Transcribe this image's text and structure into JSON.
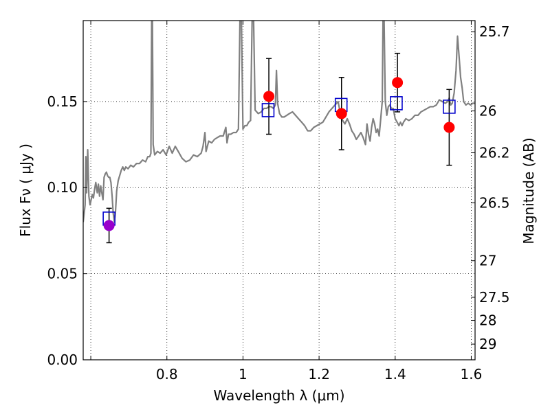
{
  "chart_data": {
    "type": "scatter",
    "xlabel": "Wavelength  λ (μm)",
    "ylabel": "Flux  Fν  ( μJy )",
    "ylabel_right": "Magnitude (AB)",
    "xlim": [
      0.58,
      1.61
    ],
    "ylim": [
      0.0,
      0.197
    ],
    "grid": true,
    "x_ticks": [
      0.6,
      0.8,
      1.0,
      1.2,
      1.4,
      1.6
    ],
    "x_tick_labels": [
      "",
      "0.8",
      "1",
      "1.2",
      "1.4",
      "1.6"
    ],
    "y_ticks": [
      0.0,
      0.05,
      0.1,
      0.15
    ],
    "y_tick_labels": [
      "0.00",
      "0.05",
      "0.10",
      "0.15"
    ],
    "right_ticks": [
      {
        "mag": 25.7,
        "label": "25.7"
      },
      {
        "mag": 26,
        "label": "26"
      },
      {
        "mag": 26.2,
        "label": "26.2"
      },
      {
        "mag": 26.5,
        "label": "26.5"
      },
      {
        "mag": 27,
        "label": "27"
      },
      {
        "mag": 27.5,
        "label": "27.5"
      },
      {
        "mag": 28,
        "label": "28"
      },
      {
        "mag": 29,
        "label": "29"
      }
    ],
    "colors": {
      "spectrum": "#808080",
      "model_squares": "#0000cc",
      "observed_points": "#ff0000",
      "first_point": "#9900cc",
      "errorbars": "#000000"
    },
    "series": [
      {
        "kind": "spectrum",
        "points": [
          [
            0.58,
            0.08
          ],
          [
            0.585,
            0.09
          ],
          [
            0.587,
            0.118
          ],
          [
            0.589,
            0.097
          ],
          [
            0.592,
            0.122
          ],
          [
            0.595,
            0.095
          ],
          [
            0.598,
            0.09
          ],
          [
            0.601,
            0.093
          ],
          [
            0.604,
            0.096
          ],
          [
            0.607,
            0.094
          ],
          [
            0.61,
            0.099
          ],
          [
            0.613,
            0.103
          ],
          [
            0.617,
            0.097
          ],
          [
            0.62,
            0.102
          ],
          [
            0.623,
            0.095
          ],
          [
            0.626,
            0.101
          ],
          [
            0.629,
            0.097
          ],
          [
            0.632,
            0.093
          ],
          [
            0.635,
            0.106
          ],
          [
            0.638,
            0.108
          ],
          [
            0.641,
            0.109
          ],
          [
            0.644,
            0.107
          ],
          [
            0.647,
            0.106
          ],
          [
            0.65,
            0.106
          ],
          [
            0.653,
            0.103
          ],
          [
            0.656,
            0.095
          ],
          [
            0.659,
            0.085
          ],
          [
            0.662,
            0.08
          ],
          [
            0.665,
            0.086
          ],
          [
            0.668,
            0.098
          ],
          [
            0.672,
            0.104
          ],
          [
            0.676,
            0.107
          ],
          [
            0.68,
            0.11
          ],
          [
            0.684,
            0.112
          ],
          [
            0.688,
            0.11
          ],
          [
            0.692,
            0.112
          ],
          [
            0.698,
            0.111
          ],
          [
            0.705,
            0.113
          ],
          [
            0.712,
            0.112
          ],
          [
            0.72,
            0.114
          ],
          [
            0.728,
            0.114
          ],
          [
            0.736,
            0.116
          ],
          [
            0.744,
            0.115
          ],
          [
            0.75,
            0.118
          ],
          [
            0.755,
            0.118
          ],
          [
            0.758,
            0.12
          ],
          [
            0.76,
            0.197
          ],
          [
            0.762,
            0.197
          ],
          [
            0.764,
            0.125
          ],
          [
            0.768,
            0.119
          ],
          [
            0.775,
            0.121
          ],
          [
            0.782,
            0.12
          ],
          [
            0.79,
            0.122
          ],
          [
            0.798,
            0.119
          ],
          [
            0.806,
            0.124
          ],
          [
            0.814,
            0.12
          ],
          [
            0.822,
            0.124
          ],
          [
            0.83,
            0.121
          ],
          [
            0.84,
            0.117
          ],
          [
            0.85,
            0.115
          ],
          [
            0.86,
            0.116
          ],
          [
            0.87,
            0.119
          ],
          [
            0.88,
            0.118
          ],
          [
            0.89,
            0.12
          ],
          [
            0.895,
            0.124
          ],
          [
            0.9,
            0.132
          ],
          [
            0.903,
            0.121
          ],
          [
            0.91,
            0.127
          ],
          [
            0.918,
            0.126
          ],
          [
            0.925,
            0.128
          ],
          [
            0.932,
            0.129
          ],
          [
            0.94,
            0.13
          ],
          [
            0.948,
            0.13
          ],
          [
            0.955,
            0.135
          ],
          [
            0.958,
            0.126
          ],
          [
            0.962,
            0.131
          ],
          [
            0.968,
            0.131
          ],
          [
            0.975,
            0.132
          ],
          [
            0.982,
            0.132
          ],
          [
            0.988,
            0.134
          ],
          [
            0.992,
            0.197
          ],
          [
            0.996,
            0.197
          ],
          [
            1.0,
            0.134
          ],
          [
            1.005,
            0.136
          ],
          [
            1.01,
            0.136
          ],
          [
            1.015,
            0.138
          ],
          [
            1.02,
            0.139
          ],
          [
            1.024,
            0.197
          ],
          [
            1.028,
            0.197
          ],
          [
            1.032,
            0.145
          ],
          [
            1.04,
            0.143
          ],
          [
            1.048,
            0.144
          ],
          [
            1.055,
            0.146
          ],
          [
            1.062,
            0.146
          ],
          [
            1.068,
            0.147
          ],
          [
            1.074,
            0.147
          ],
          [
            1.08,
            0.146
          ],
          [
            1.085,
            0.148
          ],
          [
            1.088,
            0.168
          ],
          [
            1.091,
            0.149
          ],
          [
            1.096,
            0.143
          ],
          [
            1.102,
            0.141
          ],
          [
            1.108,
            0.141
          ],
          [
            1.115,
            0.142
          ],
          [
            1.122,
            0.143
          ],
          [
            1.13,
            0.144
          ],
          [
            1.138,
            0.142
          ],
          [
            1.146,
            0.14
          ],
          [
            1.154,
            0.138
          ],
          [
            1.162,
            0.136
          ],
          [
            1.17,
            0.133
          ],
          [
            1.178,
            0.133
          ],
          [
            1.186,
            0.135
          ],
          [
            1.194,
            0.136
          ],
          [
            1.202,
            0.137
          ],
          [
            1.21,
            0.138
          ],
          [
            1.218,
            0.141
          ],
          [
            1.226,
            0.144
          ],
          [
            1.234,
            0.146
          ],
          [
            1.242,
            0.148
          ],
          [
            1.25,
            0.15
          ],
          [
            1.256,
            0.143
          ],
          [
            1.262,
            0.139
          ],
          [
            1.268,
            0.137
          ],
          [
            1.274,
            0.14
          ],
          [
            1.28,
            0.137
          ],
          [
            1.286,
            0.133
          ],
          [
            1.292,
            0.131
          ],
          [
            1.298,
            0.128
          ],
          [
            1.304,
            0.13
          ],
          [
            1.31,
            0.132
          ],
          [
            1.316,
            0.129
          ],
          [
            1.322,
            0.125
          ],
          [
            1.326,
            0.137
          ],
          [
            1.33,
            0.131
          ],
          [
            1.334,
            0.127
          ],
          [
            1.338,
            0.135
          ],
          [
            1.342,
            0.14
          ],
          [
            1.346,
            0.137
          ],
          [
            1.35,
            0.132
          ],
          [
            1.354,
            0.134
          ],
          [
            1.358,
            0.13
          ],
          [
            1.362,
            0.14
          ],
          [
            1.366,
            0.15
          ],
          [
            1.368,
            0.197
          ],
          [
            1.371,
            0.197
          ],
          [
            1.374,
            0.15
          ],
          [
            1.378,
            0.142
          ],
          [
            1.382,
            0.147
          ],
          [
            1.386,
            0.148
          ],
          [
            1.39,
            0.146
          ],
          [
            1.395,
            0.146
          ],
          [
            1.4,
            0.14
          ],
          [
            1.405,
            0.138
          ],
          [
            1.41,
            0.136
          ],
          [
            1.414,
            0.138
          ],
          [
            1.418,
            0.136
          ],
          [
            1.422,
            0.138
          ],
          [
            1.428,
            0.14
          ],
          [
            1.436,
            0.139
          ],
          [
            1.444,
            0.14
          ],
          [
            1.452,
            0.142
          ],
          [
            1.46,
            0.142
          ],
          [
            1.468,
            0.144
          ],
          [
            1.476,
            0.145
          ],
          [
            1.484,
            0.146
          ],
          [
            1.492,
            0.147
          ],
          [
            1.5,
            0.147
          ],
          [
            1.508,
            0.148
          ],
          [
            1.516,
            0.151
          ],
          [
            1.524,
            0.15
          ],
          [
            1.532,
            0.149
          ],
          [
            1.538,
            0.15
          ],
          [
            1.542,
            0.152
          ],
          [
            1.546,
            0.148
          ],
          [
            1.55,
            0.149
          ],
          [
            1.555,
            0.155
          ],
          [
            1.56,
            0.168
          ],
          [
            1.564,
            0.188
          ],
          [
            1.568,
            0.176
          ],
          [
            1.572,
            0.164
          ],
          [
            1.576,
            0.158
          ],
          [
            1.58,
            0.15
          ],
          [
            1.586,
            0.148
          ],
          [
            1.592,
            0.149
          ],
          [
            1.598,
            0.148
          ],
          [
            1.604,
            0.149
          ],
          [
            1.61,
            0.149
          ]
        ]
      },
      {
        "kind": "model_squares",
        "points": [
          [
            0.648,
            0.082
          ],
          [
            1.066,
            0.145
          ],
          [
            1.258,
            0.148
          ],
          [
            1.403,
            0.149
          ],
          [
            1.542,
            0.147
          ]
        ]
      },
      {
        "kind": "observed_points",
        "points": [
          {
            "x": 0.648,
            "y": 0.078,
            "err": 0.01,
            "color": "first_point"
          },
          {
            "x": 1.068,
            "y": 0.153,
            "err": 0.022,
            "color": "observed_points"
          },
          {
            "x": 1.259,
            "y": 0.143,
            "err": 0.021,
            "color": "observed_points"
          },
          {
            "x": 1.406,
            "y": 0.161,
            "err": 0.017,
            "color": "observed_points"
          },
          {
            "x": 1.542,
            "y": 0.135,
            "err": 0.022,
            "color": "observed_points"
          }
        ]
      }
    ]
  }
}
